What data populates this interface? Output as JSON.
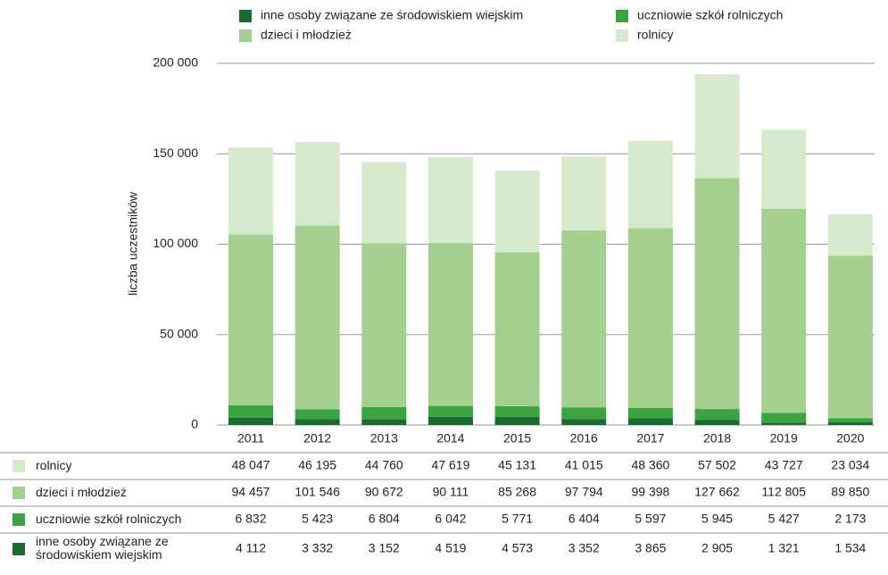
{
  "chart_data": {
    "type": "bar",
    "stacked": true,
    "y_label": "liczba uczestników",
    "categories": [
      "2011",
      "2012",
      "2013",
      "2014",
      "2015",
      "2016",
      "2017",
      "2018",
      "2019",
      "2020"
    ],
    "series": [
      {
        "name": "inne osoby związane ze środowiskiem wiejskim",
        "color": "#1b6a2f",
        "values": [
          4112,
          3332,
          3152,
          4519,
          4573,
          3352,
          3865,
          2905,
          1321,
          1534
        ],
        "value_labels": [
          "4 112",
          "3 332",
          "3 152",
          "4 519",
          "4 573",
          "3 352",
          "3 865",
          "2 905",
          "1 321",
          "1 534"
        ]
      },
      {
        "name": "uczniowie szkół rolniczych",
        "color": "#3ba33f",
        "values": [
          6832,
          5423,
          6804,
          6042,
          5771,
          6404,
          5597,
          5945,
          5427,
          2173
        ],
        "value_labels": [
          "6 832",
          "5 423",
          "6 804",
          "6 042",
          "5 771",
          "6 404",
          "5 597",
          "5 945",
          "5 427",
          "2 173"
        ]
      },
      {
        "name": "dzieci i młodzież",
        "color": "#a3cf8f",
        "values": [
          94457,
          101546,
          90672,
          90111,
          85268,
          97794,
          99398,
          127662,
          112805,
          89850
        ],
        "value_labels": [
          "94 457",
          "101 546",
          "90 672",
          "90 111",
          "85 268",
          "97 794",
          "99 398",
          "127 662",
          "112 805",
          "89 850"
        ]
      },
      {
        "name": "rolnicy",
        "color": "#d5e9cc",
        "values": [
          48047,
          46195,
          44760,
          47619,
          45131,
          41015,
          48360,
          57502,
          43727,
          23034
        ],
        "value_labels": [
          "48 047",
          "46 195",
          "44 760",
          "47 619",
          "45 131",
          "41 015",
          "48 360",
          "57 502",
          "43 727",
          "23 034"
        ]
      }
    ],
    "ylim": [
      0,
      200000
    ],
    "yticks": [
      0,
      {
        "value": 50000,
        "label": "50 000"
      },
      {
        "value": 100000,
        "label": "100 000"
      },
      {
        "value": 150000,
        "label": "150 000"
      },
      {
        "value": 200000,
        "label": "200 000"
      }
    ],
    "grid": true
  }
}
